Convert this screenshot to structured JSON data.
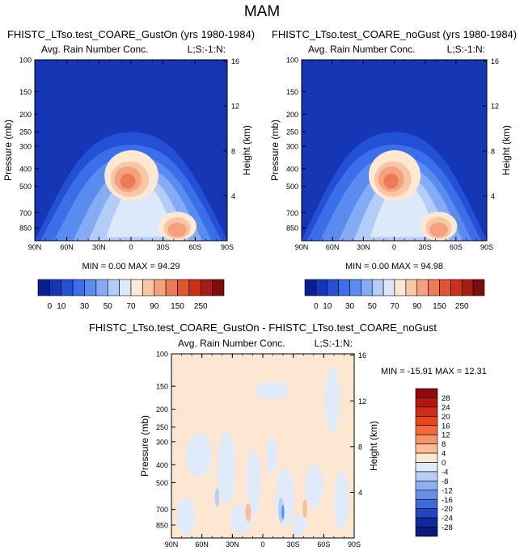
{
  "page": {
    "title": "MAM"
  },
  "chart_data": [
    {
      "type": "heatmap",
      "title": "FHISTC_LTso.test_COARE_GustOn (yrs 1980-1984)",
      "left_label": "Avg. Rain Number Conc.",
      "right_label": "L;S:-1:N:",
      "ylabel": "Pressure (mb)",
      "y2label": "Height (km)",
      "x_ticks": [
        "90N",
        "60N",
        "30N",
        "0",
        "30S",
        "60S",
        "90S"
      ],
      "y_ticks": [
        "100",
        "150",
        "200",
        "250",
        "300",
        "400",
        "500",
        "700",
        "850"
      ],
      "y2_ticks": [
        "16",
        "12",
        "8",
        "4"
      ],
      "stats": "MIN =  0.00  MAX = 94.29",
      "min": 0.0,
      "max": 94.29,
      "colorbar": {
        "labels": [
          "0",
          "10",
          "30",
          "50",
          "70",
          "90",
          "150",
          "250"
        ],
        "colors": [
          "#0a1f8f",
          "#1537b5",
          "#2450d6",
          "#3b6ee8",
          "#5a8cf0",
          "#85abf5",
          "#b3cdf8",
          "#dce9fb",
          "#fde8d3",
          "#f9c7a6",
          "#f4a27e",
          "#ec7b59",
          "#e0552f",
          "#c8321b",
          "#a51c12",
          "#7d0c0a"
        ]
      }
    },
    {
      "type": "heatmap",
      "title": "FHISTC_LTso.test_COARE_noGust (yrs 1980-1984)",
      "left_label": "Avg. Rain Number Conc.",
      "right_label": "L;S:-1:N:",
      "ylabel": "Pressure (mb)",
      "y2label": "Height (km)",
      "x_ticks": [
        "90N",
        "60N",
        "30N",
        "0",
        "30S",
        "60S",
        "90S"
      ],
      "y_ticks": [
        "100",
        "150",
        "200",
        "250",
        "300",
        "400",
        "500",
        "700",
        "850"
      ],
      "y2_ticks": [
        "16",
        "12",
        "8",
        "4"
      ],
      "stats": "MIN =  0.00  MAX = 94.98",
      "min": 0.0,
      "max": 94.98,
      "colorbar": {
        "labels": [
          "0",
          "10",
          "30",
          "50",
          "70",
          "90",
          "150",
          "250"
        ],
        "colors": [
          "#0a1f8f",
          "#1537b5",
          "#2450d6",
          "#3b6ee8",
          "#5a8cf0",
          "#85abf5",
          "#b3cdf8",
          "#dce9fb",
          "#fde8d3",
          "#f9c7a6",
          "#f4a27e",
          "#ec7b59",
          "#e0552f",
          "#c8321b",
          "#a51c12",
          "#7d0c0a"
        ]
      }
    },
    {
      "type": "heatmap",
      "title": "FHISTC_LTso.test_COARE_GustOn - FHISTC_LTso.test_COARE_noGust",
      "left_label": "Avg. Rain Number Conc.",
      "right_label": "L;S:-1:N:",
      "ylabel": "Pressure (mb)",
      "y2label": "Height (km)",
      "x_ticks": [
        "90N",
        "60N",
        "30N",
        "0",
        "30S",
        "60S",
        "90S"
      ],
      "y_ticks": [
        "100",
        "150",
        "200",
        "250",
        "300",
        "400",
        "500",
        "700",
        "850"
      ],
      "y2_ticks": [
        "16",
        "12",
        "8",
        "4"
      ],
      "stats": "MIN = -15.91   MAX =  12.31",
      "min": -15.91,
      "max": 12.31,
      "colorbar": {
        "labels": [
          "28",
          "24",
          "20",
          "16",
          "12",
          "8",
          "4",
          "0",
          "-4",
          "-8",
          "-12",
          "-16",
          "-20",
          "-24",
          "-28"
        ],
        "colors": [
          "#8c0b0b",
          "#b3180f",
          "#d12c14",
          "#e6461f",
          "#f06a3c",
          "#f79466",
          "#fbbd97",
          "#fde6d2",
          "#dfeafb",
          "#b8cef6",
          "#8fb0f0",
          "#6690e6",
          "#3d6bd8",
          "#2146c0",
          "#112a9a",
          "#0a1a78"
        ]
      }
    }
  ]
}
